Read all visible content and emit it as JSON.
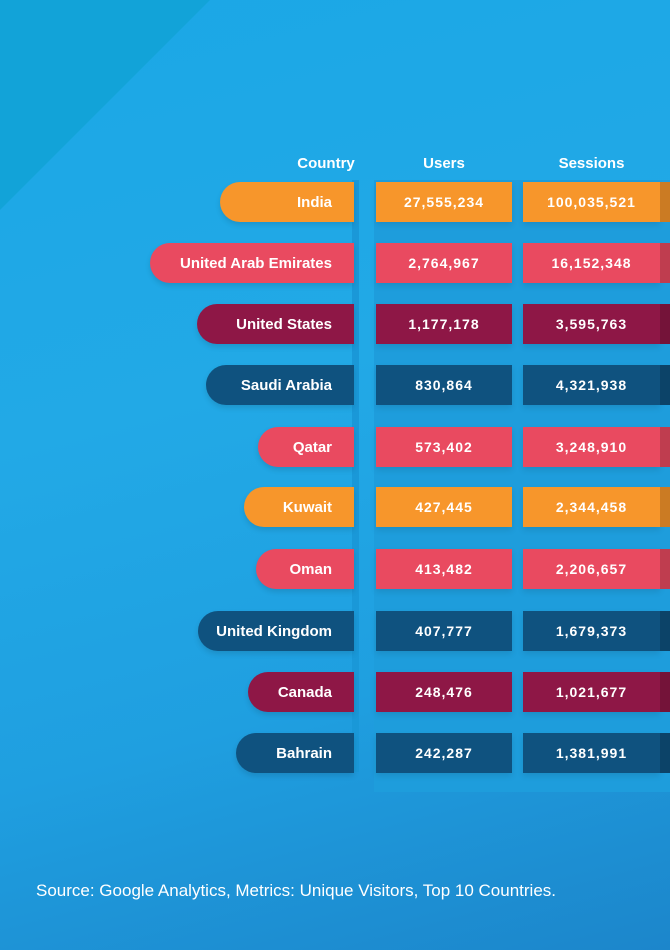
{
  "chart_data": {
    "type": "table",
    "headers": {
      "country": "Country",
      "users": "Users",
      "sessions": "Sessions"
    },
    "rows": [
      {
        "country": "India",
        "users": "27,555,234",
        "sessions": "100,035,521",
        "color": "#f7962b"
      },
      {
        "country": "United Arab Emirates",
        "users": "2,764,967",
        "sessions": "16,152,348",
        "color": "#e94a60"
      },
      {
        "country": "United States",
        "users": "1,177,178",
        "sessions": "3,595,763",
        "color": "#8e1746"
      },
      {
        "country": "Saudi Arabia",
        "users": "830,864",
        "sessions": "4,321,938",
        "color": "#0f527f"
      },
      {
        "country": "Qatar",
        "users": "573,402",
        "sessions": "3,248,910",
        "color": "#e94a60"
      },
      {
        "country": "Kuwait",
        "users": "427,445",
        "sessions": "2,344,458",
        "color": "#f7962b"
      },
      {
        "country": "Oman",
        "users": "413,482",
        "sessions": "2,206,657",
        "color": "#e94a60"
      },
      {
        "country": "United Kingdom",
        "users": "407,777",
        "sessions": "1,679,373",
        "color": "#0f527f"
      },
      {
        "country": "Canada",
        "users": "248,476",
        "sessions": "1,021,677",
        "color": "#8e1746"
      },
      {
        "country": "Bahrain",
        "users": "242,287",
        "sessions": "1,381,991",
        "color": "#0f527f"
      }
    ]
  },
  "footer": {
    "source": "Source: Google Analytics, Metrics: Unique Visitors, Top 10 Countries."
  }
}
